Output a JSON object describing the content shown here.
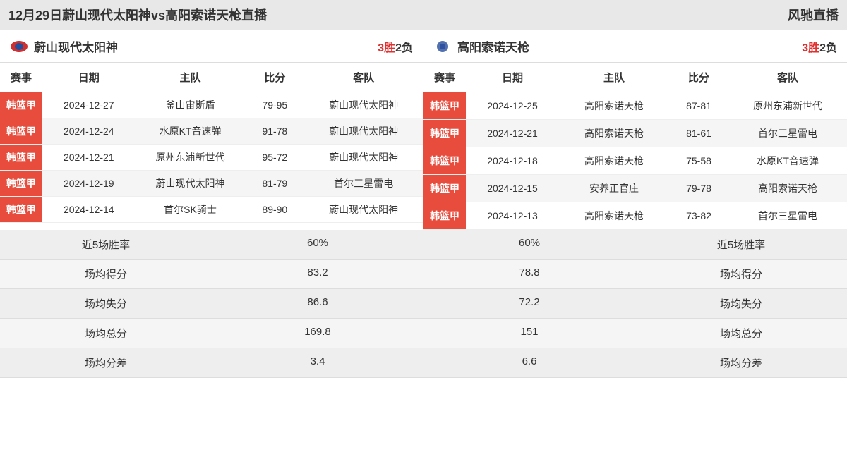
{
  "header": {
    "title": "12月29日蔚山现代太阳神vs高阳索诺天枪直播",
    "site": "风驰直播"
  },
  "colors": {
    "league_badge": "#e74c3c",
    "win_text": "#e03030",
    "header_bg": "#e8e8e8"
  },
  "columns": {
    "league": "赛事",
    "date": "日期",
    "home": "主队",
    "score": "比分",
    "away": "客队"
  },
  "left": {
    "team_name": "蔚山现代太阳神",
    "wins": "3胜",
    "losses": "2负",
    "logo_colors": {
      "outer": "#d03030",
      "inner": "#2050a0"
    },
    "games": [
      {
        "league": "韩篮甲",
        "date": "2024-12-27",
        "home": "釜山宙斯盾",
        "score": "79-95",
        "away": "蔚山现代太阳神"
      },
      {
        "league": "韩篮甲",
        "date": "2024-12-24",
        "home": "水原KT音速弹",
        "score": "91-78",
        "away": "蔚山现代太阳神"
      },
      {
        "league": "韩篮甲",
        "date": "2024-12-21",
        "home": "原州东浦新世代",
        "score": "95-72",
        "away": "蔚山现代太阳神"
      },
      {
        "league": "韩篮甲",
        "date": "2024-12-19",
        "home": "蔚山现代太阳神",
        "score": "81-79",
        "away": "首尔三星雷电"
      },
      {
        "league": "韩篮甲",
        "date": "2024-12-14",
        "home": "首尔SK骑士",
        "score": "89-90",
        "away": "蔚山现代太阳神"
      }
    ]
  },
  "right": {
    "team_name": "高阳索诺天枪",
    "wins": "3胜",
    "losses": "2负",
    "logo_colors": {
      "outer": "#5070b0",
      "inner": "#3050a0"
    },
    "games": [
      {
        "league": "韩篮甲",
        "date": "2024-12-25",
        "home": "高阳索诺天枪",
        "score": "87-81",
        "away": "原州东浦新世代"
      },
      {
        "league": "韩篮甲",
        "date": "2024-12-21",
        "home": "高阳索诺天枪",
        "score": "81-61",
        "away": "首尔三星雷电"
      },
      {
        "league": "韩篮甲",
        "date": "2024-12-18",
        "home": "高阳索诺天枪",
        "score": "75-58",
        "away": "水原KT音速弹"
      },
      {
        "league": "韩篮甲",
        "date": "2024-12-15",
        "home": "安养正官庄",
        "score": "79-78",
        "away": "高阳索诺天枪"
      },
      {
        "league": "韩篮甲",
        "date": "2024-12-13",
        "home": "高阳索诺天枪",
        "score": "73-82",
        "away": "首尔三星雷电"
      }
    ]
  },
  "stats": {
    "labels": {
      "win_rate": "近5场胜率",
      "avg_score": "场均得分",
      "avg_conceded": "场均失分",
      "avg_total": "场均总分",
      "avg_diff": "场均分差"
    },
    "left": {
      "win_rate": "60%",
      "avg_score": "83.2",
      "avg_conceded": "86.6",
      "avg_total": "169.8",
      "avg_diff": "3.4"
    },
    "right": {
      "win_rate": "60%",
      "avg_score": "78.8",
      "avg_conceded": "72.2",
      "avg_total": "151",
      "avg_diff": "6.6"
    }
  }
}
